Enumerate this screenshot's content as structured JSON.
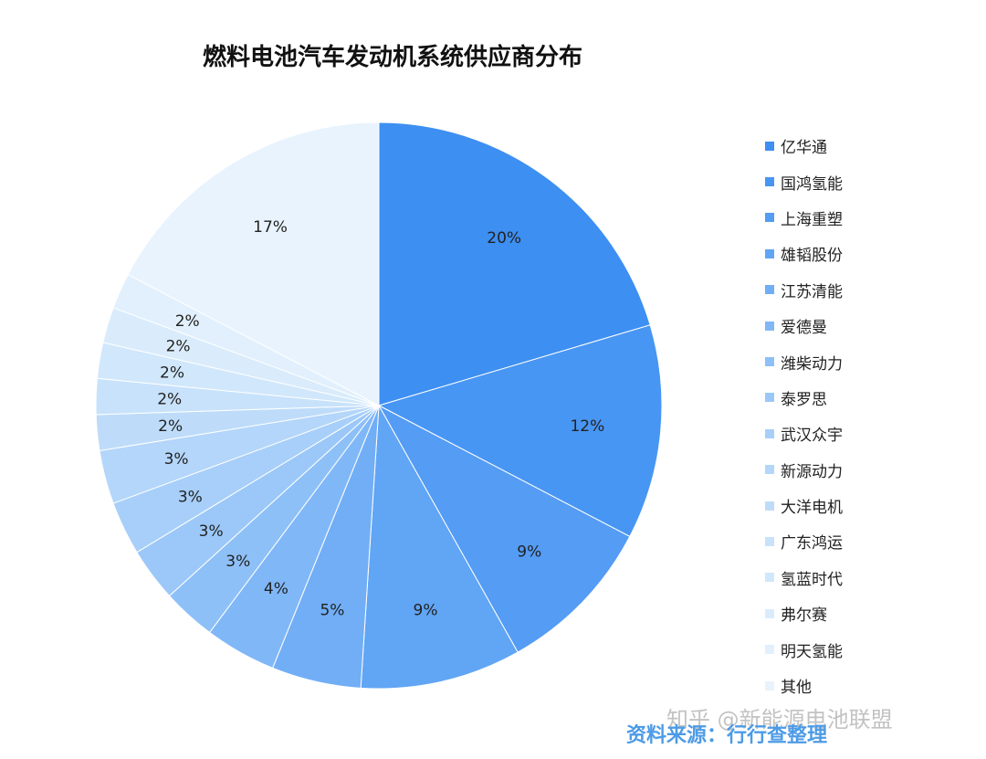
{
  "chart_data": {
    "type": "pie",
    "title": "燃料电池汽车发动机系统供应商分布",
    "start_angle_deg": 0,
    "direction": "clockwise",
    "legend_position": "right",
    "slices": [
      {
        "name": "亿华通",
        "value": 20,
        "label": "20%",
        "color": "#3d8ff2"
      },
      {
        "name": "国鸿氢能",
        "value": 12,
        "label": "12%",
        "color": "#4896f3"
      },
      {
        "name": "上海重塑",
        "value": 9,
        "label": "9%",
        "color": "#549cf4"
      },
      {
        "name": "雄韬股份",
        "value": 9,
        "label": "9%",
        "color": "#61a5f5"
      },
      {
        "name": "江苏清能",
        "value": 5,
        "label": "5%",
        "color": "#71aef6"
      },
      {
        "name": "爱德曼",
        "value": 4,
        "label": "4%",
        "color": "#80b7f7"
      },
      {
        "name": "潍柴动力",
        "value": 3,
        "label": "3%",
        "color": "#8ec0f8"
      },
      {
        "name": "泰罗思",
        "value": 3,
        "label": "3%",
        "color": "#9bc8f8"
      },
      {
        "name": "武汉众宇",
        "value": 3,
        "label": "3%",
        "color": "#a7cff9"
      },
      {
        "name": "新源动力",
        "value": 3,
        "label": "3%",
        "color": "#b3d6fa"
      },
      {
        "name": "大洋电机",
        "value": 2,
        "label": "2%",
        "color": "#bedcfa"
      },
      {
        "name": "广东鸿运",
        "value": 2,
        "label": "2%",
        "color": "#c8e2fb"
      },
      {
        "name": "氢蓝时代",
        "value": 2,
        "label": "2%",
        "color": "#d1e7fb"
      },
      {
        "name": "弗尔赛",
        "value": 2,
        "label": "2%",
        "color": "#daecfc"
      },
      {
        "name": "明天氢能",
        "value": 2,
        "label": "2%",
        "color": "#e1f0fc"
      },
      {
        "name": "其他",
        "value": 17,
        "label": "17%",
        "color": "#e8f3fd"
      }
    ]
  },
  "source_note": "资料来源：行行查整理",
  "watermark": "知乎 @新能源电池联盟"
}
